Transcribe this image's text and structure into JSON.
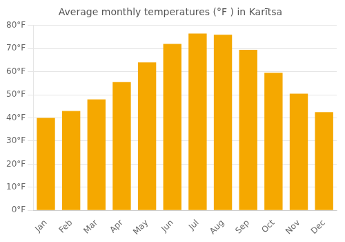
{
  "chart_data": {
    "type": "bar",
    "title": "Average monthly temperatures (°F ) in Karītsa",
    "categories": [
      "Jan",
      "Feb",
      "Mar",
      "Apr",
      "May",
      "Jun",
      "Jul",
      "Aug",
      "Sep",
      "Oct",
      "Nov",
      "Dec"
    ],
    "values": [
      40,
      43,
      48,
      55.5,
      64,
      72,
      76.5,
      76,
      69.5,
      59.5,
      50.5,
      42.5
    ],
    "color": "#F5A800",
    "ylim": [
      0,
      80
    ],
    "yticks": [
      {
        "value": 0,
        "label": "0°F"
      },
      {
        "value": 10,
        "label": "10°F"
      },
      {
        "value": 20,
        "label": "20°F"
      },
      {
        "value": 30,
        "label": "30°F"
      },
      {
        "value": 40,
        "label": "40°F"
      },
      {
        "value": 50,
        "label": "50°F"
      },
      {
        "value": 60,
        "label": "60°F"
      },
      {
        "value": 70,
        "label": "70°F"
      },
      {
        "value": 80,
        "label": "80°F"
      }
    ],
    "grid": true
  }
}
